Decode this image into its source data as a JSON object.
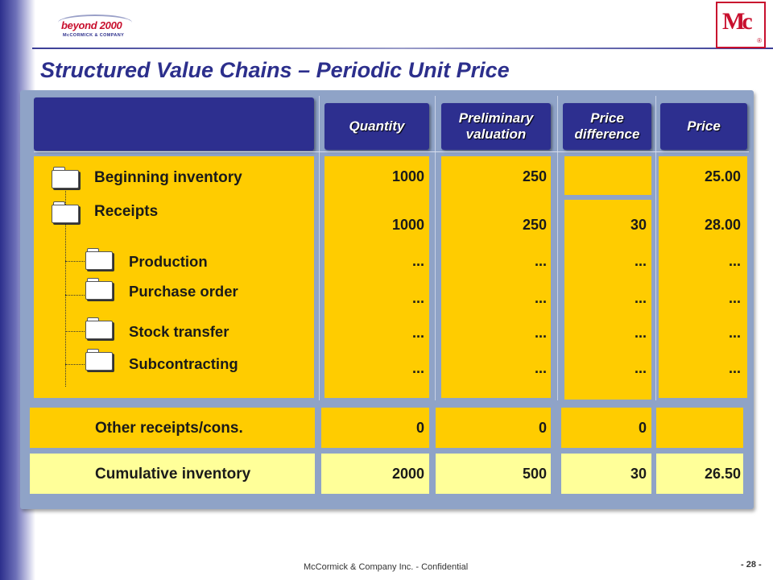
{
  "title": "Structured Value Chains – Periodic Unit Price",
  "logos": {
    "left_word": "beyond 2000",
    "left_sub": "McCORMICK & COMPANY",
    "right_mark": "Mc",
    "right_reg": "®"
  },
  "columns": [
    {
      "label": "Quantity"
    },
    {
      "label": "Preliminary\nvaluation"
    },
    {
      "label": "Price\ndifference"
    },
    {
      "label": "Price"
    }
  ],
  "rows": {
    "beginning": {
      "label": "Beginning inventory",
      "quantity": "1000",
      "preliminary": "250",
      "difference": "",
      "price": "25.00"
    },
    "receipts": {
      "label": "Receipts",
      "quantity": "1000",
      "preliminary": "250",
      "difference": "30",
      "price": "28.00"
    },
    "production": {
      "label": "Production",
      "quantity": "...",
      "preliminary": "...",
      "difference": "...",
      "price": "..."
    },
    "purchase": {
      "label": "Purchase order",
      "quantity": "...",
      "preliminary": "...",
      "difference": "...",
      "price": "..."
    },
    "stock": {
      "label": "Stock transfer",
      "quantity": "...",
      "preliminary": "...",
      "difference": "...",
      "price": "..."
    },
    "subcontracting": {
      "label": "Subcontracting",
      "quantity": "...",
      "preliminary": "...",
      "difference": "...",
      "price": "..."
    },
    "other": {
      "label": "Other receipts/cons.",
      "quantity": "0",
      "preliminary": "0",
      "difference": "0",
      "price": ""
    },
    "cumulative": {
      "label": "Cumulative inventory",
      "quantity": "2000",
      "preliminary": "500",
      "difference": "30",
      "price": "26.50"
    }
  },
  "footer": {
    "text": "McCormick & Company Inc. - Confidential",
    "page": "- 28 -"
  },
  "colors": {
    "navy": "#2d2f8f",
    "panel": "#8fa3c7",
    "gold": "#ffcc00",
    "lemon": "#ffff99",
    "title": "#2c2f8c"
  },
  "icons": [
    "folder-icon"
  ]
}
